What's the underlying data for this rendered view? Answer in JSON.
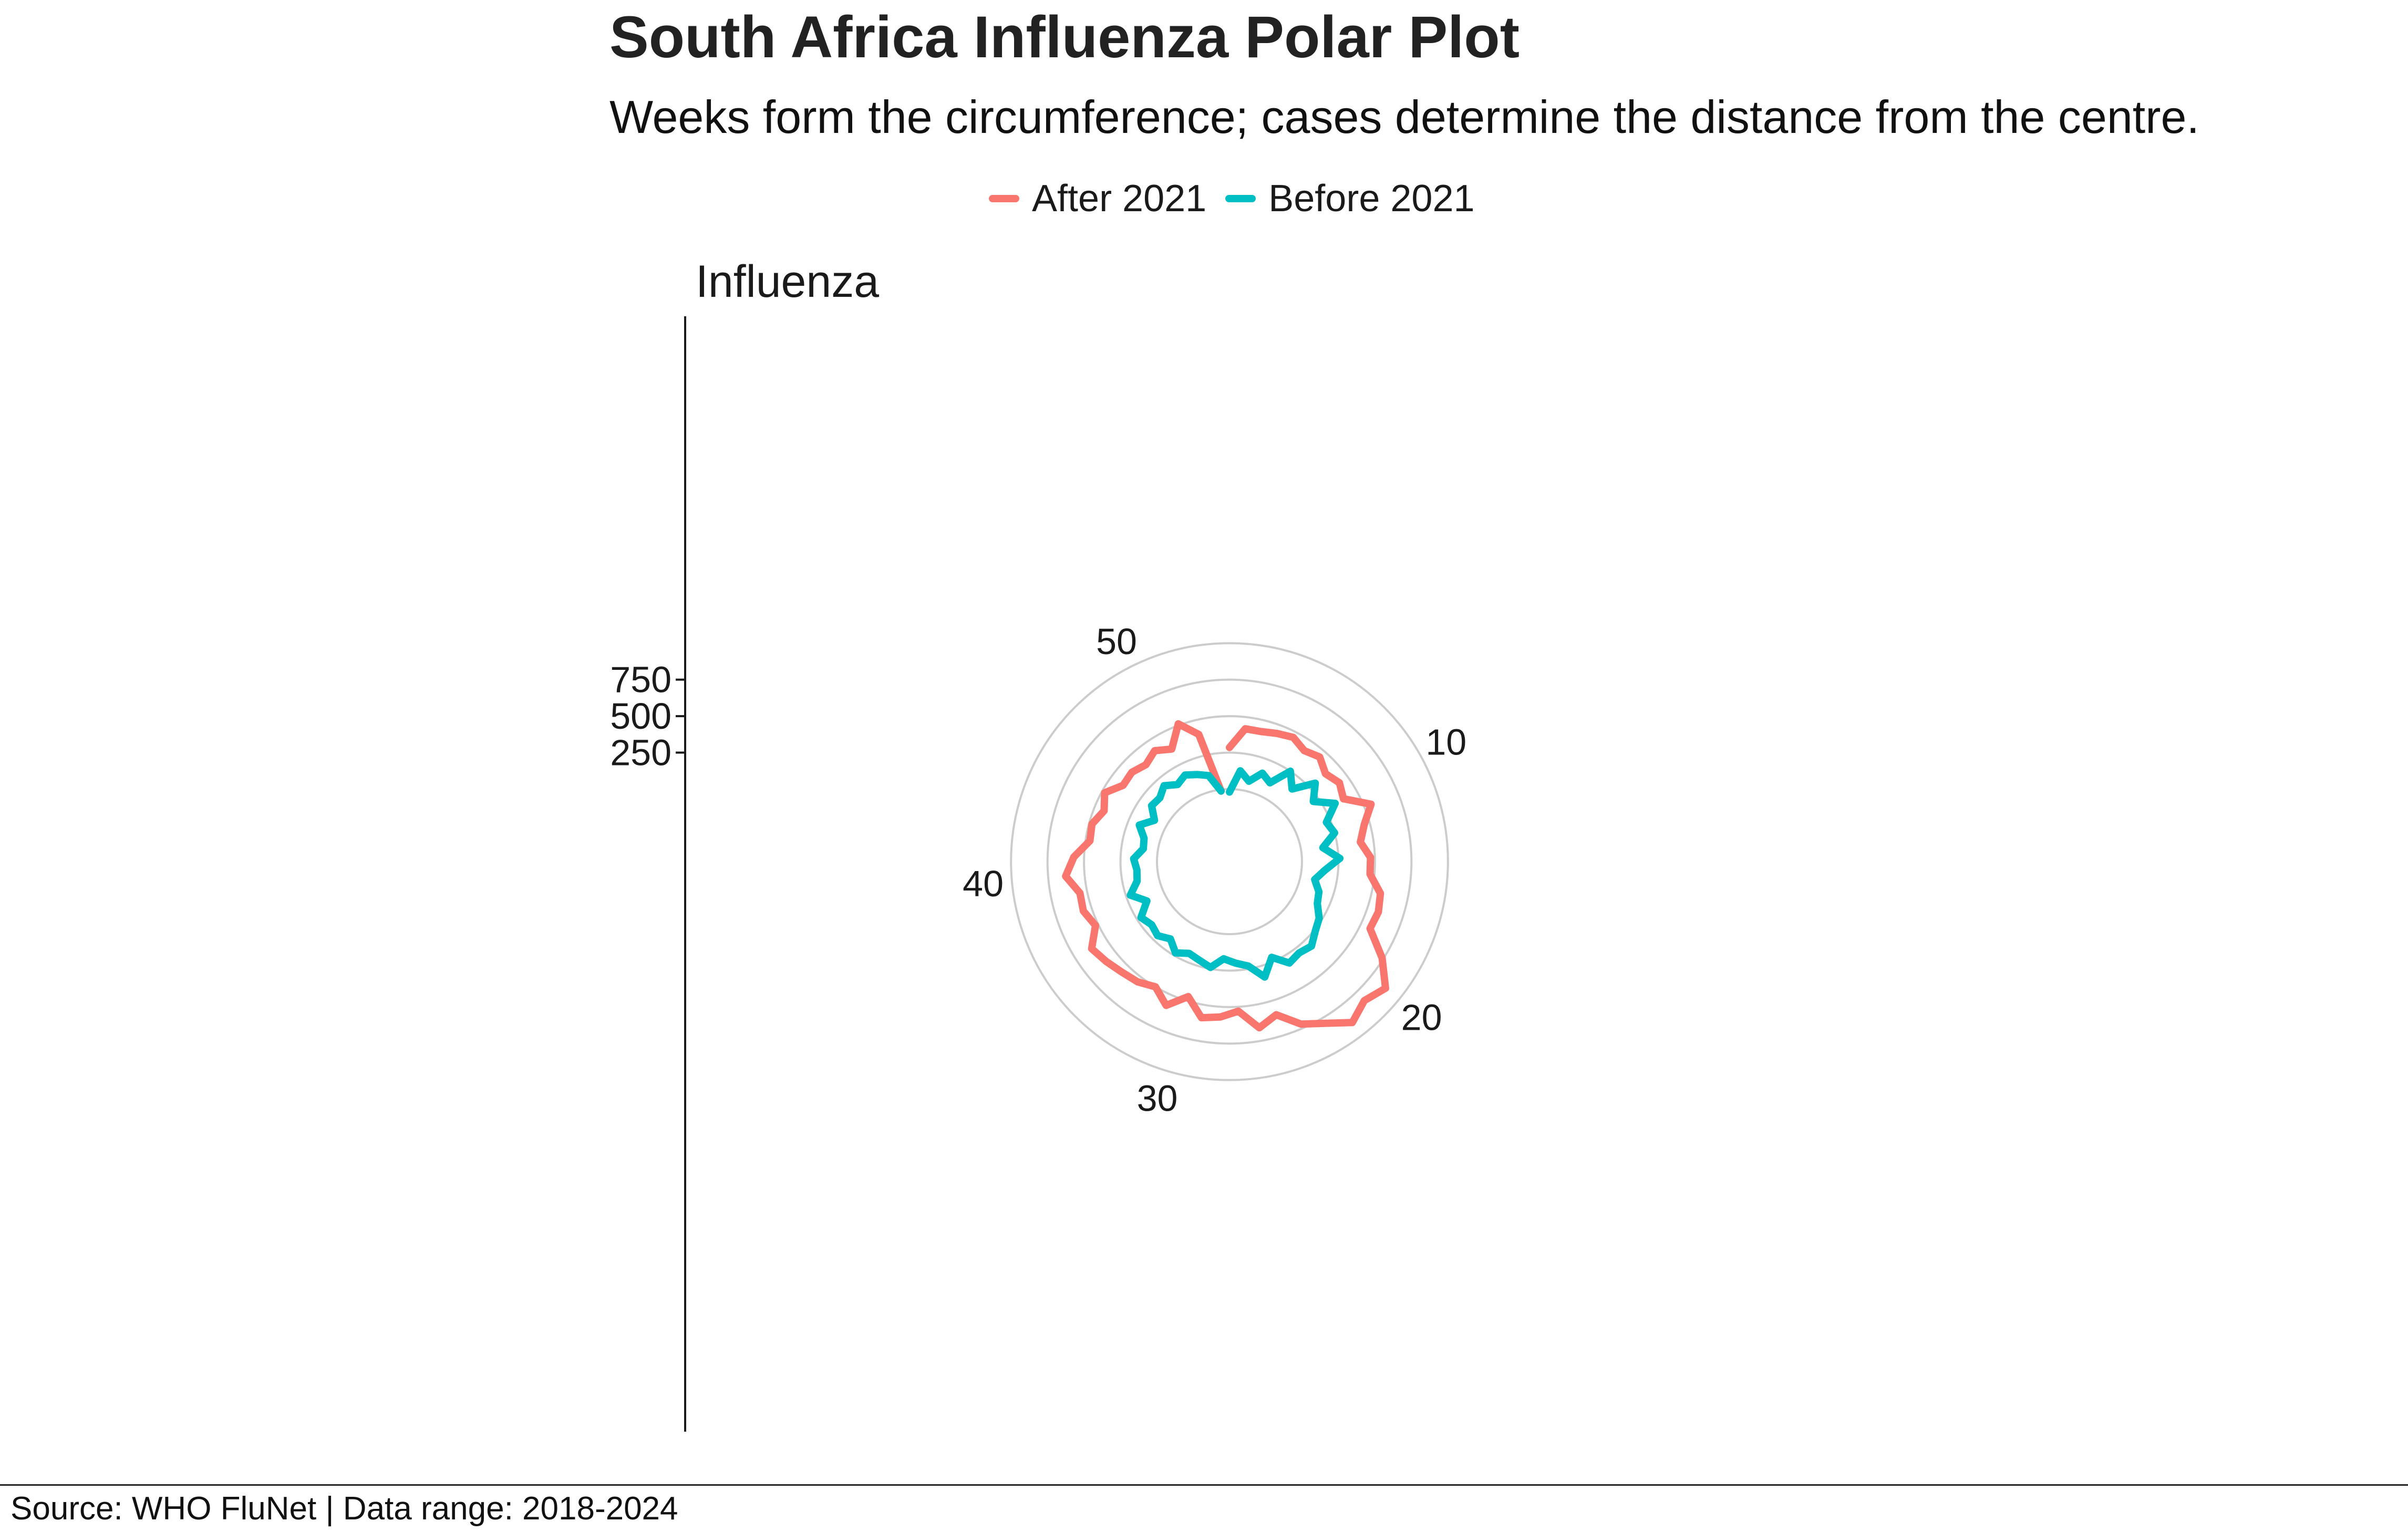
{
  "title": "South Africa Influenza Polar Plot",
  "subtitle": "Weeks form the circumference; cases determine the distance from the centre.",
  "source": "Source: WHO FluNet | Data range: 2018-2024",
  "legend": [
    {
      "label": "After 2021",
      "color": "#F8766D"
    },
    {
      "label": "Before 2021",
      "color": "#00BFC4"
    }
  ],
  "chart_data": {
    "type": "line",
    "coordinate_system": "polar",
    "x_axis": "week of year (angle)",
    "week_range": [
      1,
      53
    ],
    "angle_tick_labels": [
      "10",
      "20",
      "30",
      "40",
      "50"
    ],
    "angle_ticks": [
      10,
      20,
      30,
      40,
      50
    ],
    "ylabel": "Influenza",
    "y_tick_labels": [
      "250",
      "500",
      "750"
    ],
    "y_ticks": [
      250,
      500,
      750
    ],
    "ylim": [
      -450,
      1080
    ],
    "grid_radii": [
      0,
      250,
      500,
      750,
      1000
    ],
    "legend_position": "top",
    "series": [
      {
        "name": "After 2021",
        "color": "#F8766D",
        "weeks": [
          1,
          2,
          3,
          4,
          5,
          6,
          7,
          8,
          9,
          10,
          11,
          12,
          13,
          14,
          15,
          16,
          17,
          18,
          19,
          20,
          21,
          22,
          23,
          24,
          25,
          26,
          27,
          28,
          29,
          30,
          31,
          32,
          33,
          34,
          35,
          36,
          37,
          38,
          39,
          40,
          41,
          42,
          43,
          44,
          45,
          46,
          47,
          48,
          49,
          50,
          51,
          52,
          53
        ],
        "values": [
          285,
          420,
          420,
          440,
          460,
          420,
          450,
          395,
          430,
          395,
          550,
          460,
          410,
          470,
          470,
          560,
          580,
          570,
          740,
          880,
          830,
          890,
          790,
          720,
          600,
          660,
          530,
          570,
          590,
          470,
          580,
          500,
          540,
          560,
          590,
          620,
          520,
          560,
          550,
          630,
          570,
          470,
          480,
          430,
          480,
          400,
          410,
          380,
          420,
          370,
          510,
          400,
          -10
        ]
      },
      {
        "name": "Before 2021",
        "color": "#00BFC4",
        "weeks": [
          1,
          2,
          3,
          4,
          5,
          6,
          7,
          8,
          9,
          10,
          11,
          12,
          13,
          14,
          15,
          16,
          17,
          18,
          19,
          20,
          21,
          22,
          23,
          24,
          25,
          26,
          27,
          28,
          29,
          30,
          31,
          32,
          33,
          34,
          35,
          36,
          37,
          38,
          39,
          40,
          41,
          42,
          43,
          44,
          45,
          46,
          47,
          48,
          49,
          50,
          51,
          52,
          53
        ],
        "values": [
          -20,
          130,
          70,
          150,
          110,
          250,
          160,
          300,
          210,
          330,
          220,
          250,
          150,
          260,
          160,
          100,
          150,
          170,
          230,
          260,
          310,
          290,
          310,
          220,
          330,
          230,
          200,
          170,
          240,
          210,
          190,
          230,
          170,
          210,
          190,
          220,
          130,
          220,
          150,
          140,
          160,
          100,
          110,
          170,
          90,
          160,
          150,
          190,
          140,
          170,
          140,
          110,
          -10
        ]
      }
    ]
  }
}
